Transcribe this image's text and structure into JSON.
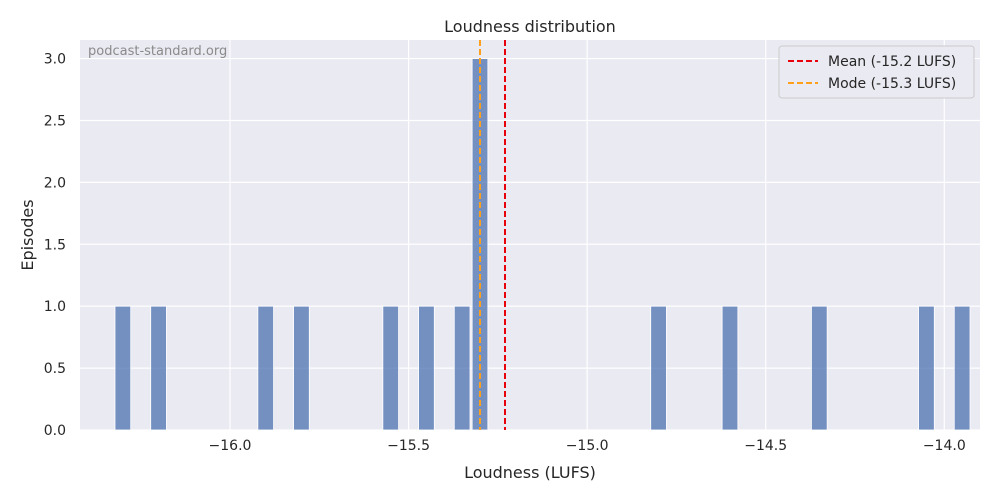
{
  "watermark": "podcast-standard.org",
  "colors": {
    "plot_bg": "#eaeaf2",
    "grid": "#ffffff",
    "bar": "#4c72b0",
    "mean_line": "#e8000b",
    "mode_line": "#ff9f1c",
    "text": "#262626"
  },
  "chart_data": {
    "type": "bar",
    "title": "Loudness distribution",
    "xlabel": "Loudness (LUFS)",
    "ylabel": "Episodes",
    "xlim": [
      -16.42,
      -13.9
    ],
    "ylim": [
      0,
      3.15
    ],
    "bin_width": 0.044,
    "grid": true,
    "legend_position": "top-right",
    "x_ticks": [
      -16.0,
      -15.5,
      -15.0,
      -14.5,
      -14.0
    ],
    "x_tick_labels": [
      "−16.0",
      "−15.5",
      "−15.0",
      "−14.5",
      "−14.0"
    ],
    "y_ticks": [
      0.0,
      0.5,
      1.0,
      1.5,
      2.0,
      2.5,
      3.0
    ],
    "y_tick_labels": [
      "0.0",
      "0.5",
      "1.0",
      "1.5",
      "2.0",
      "2.5",
      "3.0"
    ],
    "bins": [
      {
        "x": -16.3,
        "count": 1
      },
      {
        "x": -16.2,
        "count": 1
      },
      {
        "x": -15.9,
        "count": 1
      },
      {
        "x": -15.8,
        "count": 1
      },
      {
        "x": -15.55,
        "count": 1
      },
      {
        "x": -15.45,
        "count": 1
      },
      {
        "x": -15.35,
        "count": 1
      },
      {
        "x": -15.3,
        "count": 3
      },
      {
        "x": -14.8,
        "count": 1
      },
      {
        "x": -14.6,
        "count": 1
      },
      {
        "x": -14.35,
        "count": 1
      },
      {
        "x": -14.05,
        "count": 1
      },
      {
        "x": -13.95,
        "count": 1
      }
    ],
    "reference_lines": [
      {
        "name": "Mean (-15.2 LUFS)",
        "x": -15.23,
        "color": "#e8000b"
      },
      {
        "name": "Mode (-15.3 LUFS)",
        "x": -15.3,
        "color": "#ff9f1c"
      }
    ]
  }
}
